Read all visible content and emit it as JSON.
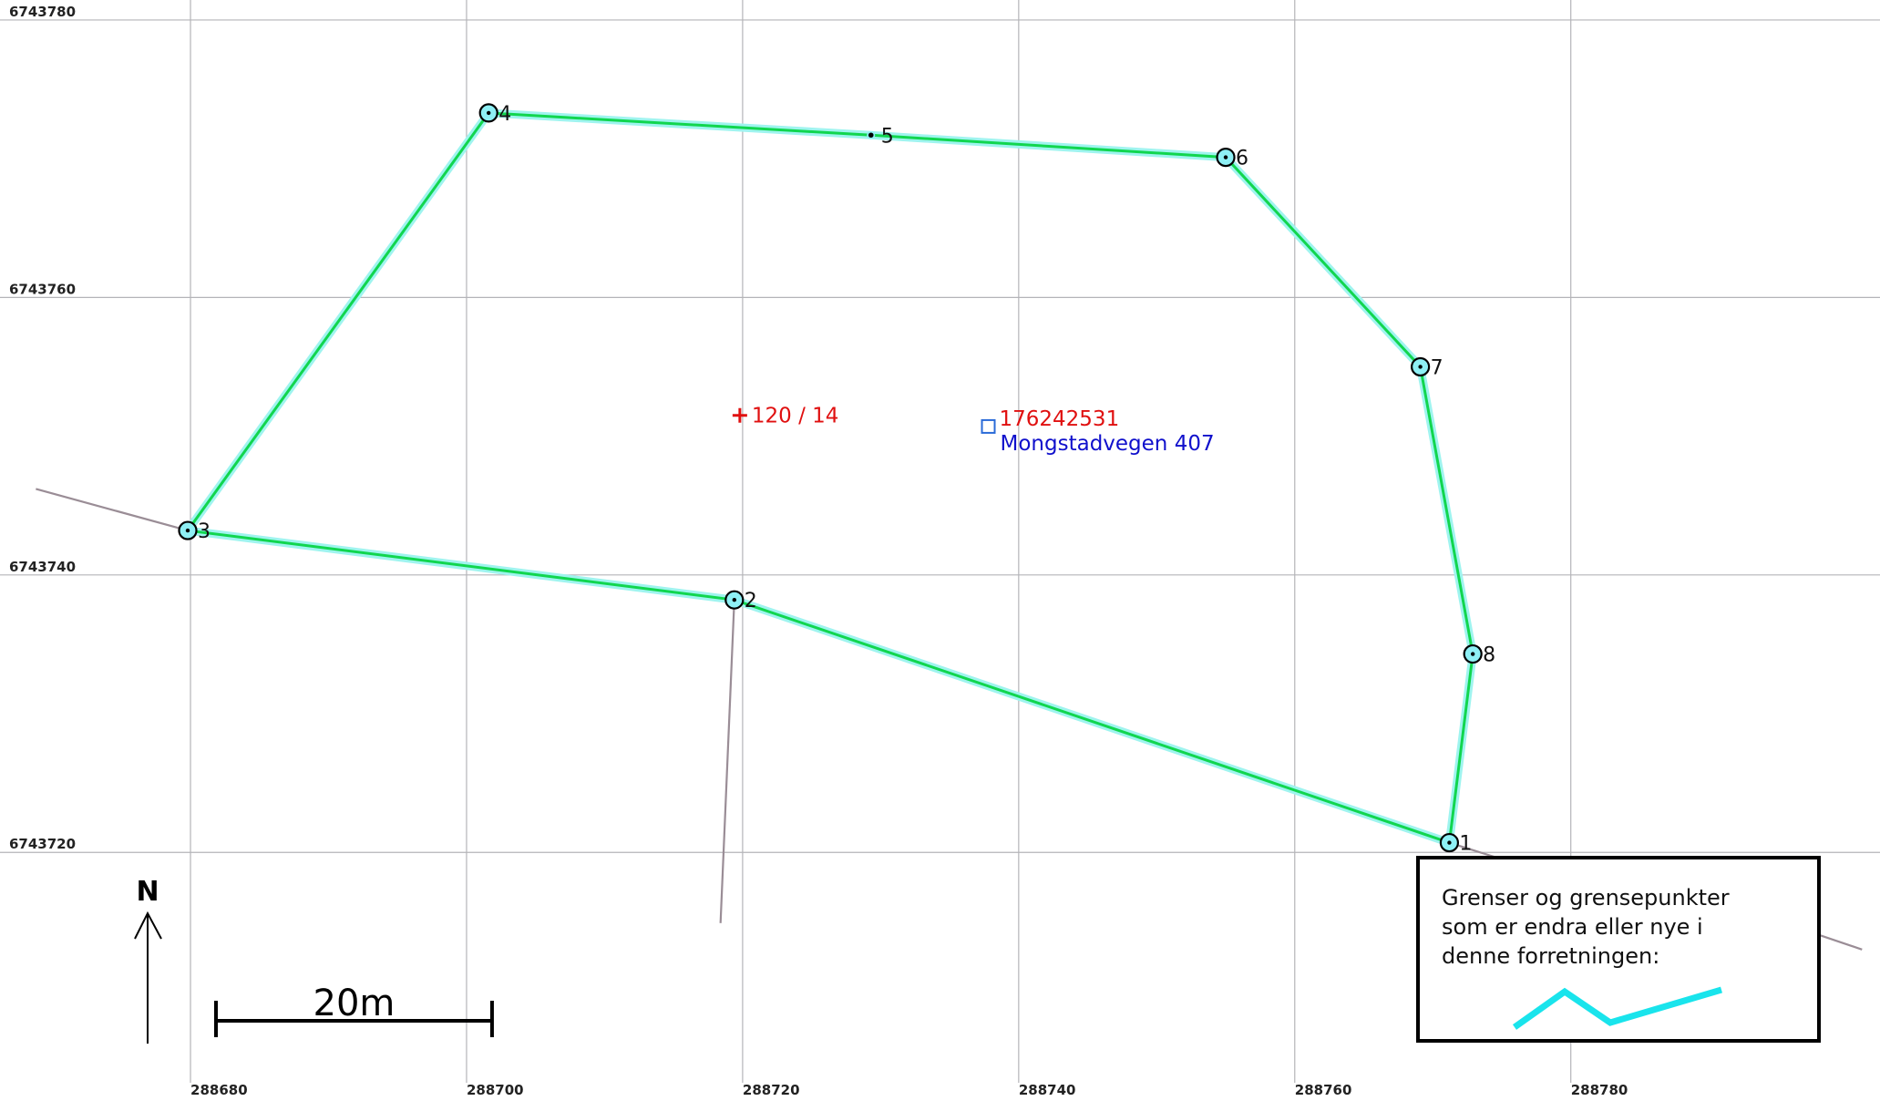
{
  "map": {
    "extent": {
      "x_min": 288666.2,
      "x_max": 288802.4,
      "y_min": 6743702.08,
      "y_max": 6743781.44
    },
    "grid": {
      "x_ticks": [
        288680,
        288700,
        288720,
        288740,
        288760,
        288780
      ],
      "y_ticks": [
        6743720,
        6743740,
        6743760,
        6743780
      ],
      "x_labels": [
        "288680",
        "288700",
        "288720",
        "288740",
        "288760",
        "288780"
      ],
      "y_labels": [
        "6743720",
        "6743740",
        "6743760",
        "6743780"
      ]
    },
    "boundary_points": [
      {
        "id": "1",
        "label": "1",
        "x": 288771.2,
        "y": 6743720.7,
        "marker": "circle"
      },
      {
        "id": "2",
        "label": "2",
        "x": 288719.4,
        "y": 6743738.2,
        "marker": "circle"
      },
      {
        "id": "3",
        "label": "3",
        "x": 288679.8,
        "y": 6743743.2,
        "marker": "circle"
      },
      {
        "id": "4",
        "label": "4",
        "x": 288701.6,
        "y": 6743773.3,
        "marker": "circle"
      },
      {
        "id": "5",
        "label": "5",
        "x": 288729.3,
        "y": 6743771.7,
        "marker": "dot"
      },
      {
        "id": "6",
        "label": "6",
        "x": 288755.0,
        "y": 6743770.1,
        "marker": "circle"
      },
      {
        "id": "7",
        "label": "7",
        "x": 288769.1,
        "y": 6743755.0,
        "marker": "circle"
      },
      {
        "id": "8",
        "label": "8",
        "x": 288772.9,
        "y": 6743734.3,
        "marker": "circle"
      }
    ],
    "boundary_order": [
      "1",
      "2",
      "3",
      "4",
      "5",
      "6",
      "7",
      "8",
      "1"
    ],
    "adjacent_lines": [
      [
        [
          288668.8,
          6743746.2
        ],
        [
          288679.8,
          6743743.2
        ]
      ],
      [
        [
          288719.4,
          6743738.2
        ],
        [
          288718.4,
          6743714.9
        ]
      ],
      [
        [
          288771.2,
          6743720.7
        ],
        [
          288776.3,
          6743719.1
        ]
      ],
      [
        [
          288791.0,
          6743716.4
        ],
        [
          288801.1,
          6743713.0
        ]
      ]
    ],
    "parcel": {
      "text": "120 / 14",
      "x": 288719.8,
      "y": 6743751.5,
      "color": "#e01010"
    },
    "building": {
      "id_text": "176242531",
      "address": "Mongstadvegen 407",
      "x": 288737.8,
      "y": 6743750.7,
      "id_color": "#e01010",
      "address_color": "#1010cc"
    },
    "colors": {
      "boundary": "#11d64f",
      "boundary_halo": "#9ff4ef",
      "grid": "#b4b4b8",
      "adjacent": "#9a8d96",
      "marker_fill": "#8ef0f5",
      "legend_line": "#19e4ec"
    }
  },
  "north_arrow": {
    "letter": "N"
  },
  "scale_bar": {
    "label": "20m",
    "length_m": 20
  },
  "legend": {
    "lines": [
      "Grenser og grensepunkter",
      "som er endra eller nye i",
      "denne forretningen:"
    ],
    "symbol": "changed-boundary-line"
  }
}
